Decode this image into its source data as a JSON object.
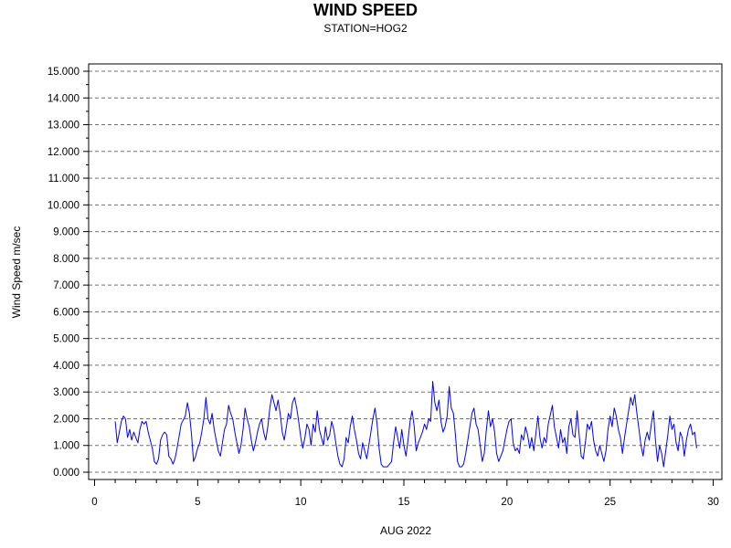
{
  "chart_data": {
    "type": "line",
    "title": "WIND SPEED",
    "subtitle": "STATION=HOG2",
    "xlabel": "AUG 2022",
    "ylabel": "Wind Speed m/sec",
    "xlim": [
      0,
      30
    ],
    "ylim": [
      0,
      15
    ],
    "x_ticks": [
      0,
      5,
      10,
      15,
      20,
      25,
      30
    ],
    "x_tick_labels": [
      "0",
      "5",
      "10",
      "15",
      "20",
      "25",
      "30"
    ],
    "y_ticks": [
      0,
      1,
      2,
      3,
      4,
      5,
      6,
      7,
      8,
      9,
      10,
      11,
      12,
      13,
      14,
      15
    ],
    "y_tick_labels": [
      "0.000",
      "1.000",
      "2.000",
      "3.000",
      "4.000",
      "5.000",
      "6.000",
      "7.000",
      "8.000",
      "9.000",
      "10.000",
      "11.000",
      "12.000",
      "13.000",
      "14.000",
      "15.000"
    ],
    "grid": "horizontal dashed at major y ticks",
    "line_color": "#0000ff",
    "series": [
      {
        "values": [
          [
            1.0,
            1.9
          ],
          [
            1.1,
            1.1
          ],
          [
            1.2,
            1.5
          ],
          [
            1.3,
            1.9
          ],
          [
            1.4,
            2.1
          ],
          [
            1.5,
            2.0
          ],
          [
            1.6,
            1.3
          ],
          [
            1.7,
            1.6
          ],
          [
            1.8,
            1.2
          ],
          [
            1.9,
            1.5
          ],
          [
            2.0,
            1.3
          ],
          [
            2.1,
            1.1
          ],
          [
            2.2,
            1.6
          ],
          [
            2.3,
            1.9
          ],
          [
            2.4,
            1.8
          ],
          [
            2.5,
            1.9
          ],
          [
            2.6,
            1.5
          ],
          [
            2.7,
            1.2
          ],
          [
            2.8,
            0.9
          ],
          [
            2.9,
            0.4
          ],
          [
            3.0,
            0.3
          ],
          [
            3.1,
            0.5
          ],
          [
            3.2,
            1.2
          ],
          [
            3.3,
            1.4
          ],
          [
            3.4,
            1.5
          ],
          [
            3.5,
            1.4
          ],
          [
            3.6,
            0.6
          ],
          [
            3.7,
            0.5
          ],
          [
            3.8,
            0.3
          ],
          [
            3.9,
            0.5
          ],
          [
            4.0,
            0.9
          ],
          [
            4.2,
            1.8
          ],
          [
            4.4,
            2.1
          ],
          [
            4.5,
            2.6
          ],
          [
            4.6,
            2.2
          ],
          [
            4.7,
            1.4
          ],
          [
            4.8,
            0.4
          ],
          [
            4.9,
            0.6
          ],
          [
            5.0,
            0.9
          ],
          [
            5.1,
            1.1
          ],
          [
            5.2,
            1.5
          ],
          [
            5.3,
            2.0
          ],
          [
            5.4,
            2.8
          ],
          [
            5.5,
            2.0
          ],
          [
            5.6,
            1.8
          ],
          [
            5.7,
            2.2
          ],
          [
            5.8,
            1.6
          ],
          [
            5.9,
            1.2
          ],
          [
            6.0,
            0.8
          ],
          [
            6.1,
            0.6
          ],
          [
            6.2,
            1.1
          ],
          [
            6.3,
            1.6
          ],
          [
            6.4,
            1.8
          ],
          [
            6.5,
            2.5
          ],
          [
            6.6,
            2.2
          ],
          [
            6.7,
            2.0
          ],
          [
            6.8,
            1.5
          ],
          [
            6.9,
            1.1
          ],
          [
            7.0,
            0.7
          ],
          [
            7.1,
            1.0
          ],
          [
            7.2,
            1.6
          ],
          [
            7.3,
            2.4
          ],
          [
            7.4,
            2.0
          ],
          [
            7.5,
            1.7
          ],
          [
            7.6,
            1.2
          ],
          [
            7.7,
            0.8
          ],
          [
            7.8,
            1.1
          ],
          [
            7.9,
            1.5
          ],
          [
            8.0,
            1.8
          ],
          [
            8.1,
            2.0
          ],
          [
            8.2,
            1.5
          ],
          [
            8.3,
            1.2
          ],
          [
            8.4,
            1.7
          ],
          [
            8.5,
            2.4
          ],
          [
            8.6,
            2.9
          ],
          [
            8.7,
            2.6
          ],
          [
            8.8,
            2.3
          ],
          [
            8.9,
            2.7
          ],
          [
            9.0,
            2.2
          ],
          [
            9.1,
            1.5
          ],
          [
            9.2,
            1.2
          ],
          [
            9.3,
            1.7
          ],
          [
            9.4,
            2.2
          ],
          [
            9.5,
            2.0
          ],
          [
            9.6,
            2.6
          ],
          [
            9.7,
            2.8
          ],
          [
            9.8,
            2.4
          ],
          [
            9.9,
            1.9
          ],
          [
            10.0,
            1.3
          ],
          [
            10.1,
            0.9
          ],
          [
            10.2,
            1.3
          ],
          [
            10.3,
            1.8
          ],
          [
            10.4,
            1.6
          ],
          [
            10.5,
            1.0
          ],
          [
            10.6,
            1.8
          ],
          [
            10.7,
            1.5
          ],
          [
            10.8,
            2.3
          ],
          [
            10.9,
            1.6
          ],
          [
            11.0,
            1.3
          ],
          [
            11.1,
            1.0
          ],
          [
            11.2,
            1.7
          ],
          [
            11.3,
            1.2
          ],
          [
            11.4,
            1.4
          ],
          [
            11.5,
            1.9
          ],
          [
            11.6,
            1.6
          ],
          [
            11.7,
            1.1
          ],
          [
            11.8,
            0.6
          ],
          [
            11.9,
            0.3
          ],
          [
            12.0,
            0.2
          ],
          [
            12.1,
            0.5
          ],
          [
            12.2,
            1.3
          ],
          [
            12.3,
            1.1
          ],
          [
            12.4,
            1.7
          ],
          [
            12.5,
            2.1
          ],
          [
            12.6,
            1.6
          ],
          [
            12.7,
            1.2
          ],
          [
            12.8,
            0.7
          ],
          [
            12.9,
            0.5
          ],
          [
            13.0,
            1.1
          ],
          [
            13.1,
            0.8
          ],
          [
            13.2,
            0.5
          ],
          [
            13.3,
            1.0
          ],
          [
            13.4,
            1.5
          ],
          [
            13.5,
            2.0
          ],
          [
            13.6,
            2.4
          ],
          [
            13.7,
            1.8
          ],
          [
            13.8,
            0.9
          ],
          [
            13.9,
            0.3
          ],
          [
            14.0,
            0.2
          ],
          [
            14.2,
            0.2
          ],
          [
            14.4,
            0.4
          ],
          [
            14.5,
            1.1
          ],
          [
            14.6,
            1.7
          ],
          [
            14.7,
            1.3
          ],
          [
            14.8,
            0.9
          ],
          [
            14.9,
            1.6
          ],
          [
            15.0,
            1.0
          ],
          [
            15.1,
            0.6
          ],
          [
            15.2,
            1.2
          ],
          [
            15.3,
            1.9
          ],
          [
            15.4,
            2.3
          ],
          [
            15.5,
            1.7
          ],
          [
            15.6,
            0.8
          ],
          [
            15.7,
            1.1
          ],
          [
            15.8,
            1.3
          ],
          [
            15.9,
            1.5
          ],
          [
            16.0,
            1.8
          ],
          [
            16.1,
            1.6
          ],
          [
            16.2,
            2.0
          ],
          [
            16.3,
            1.9
          ],
          [
            16.4,
            3.4
          ],
          [
            16.5,
            2.6
          ],
          [
            16.6,
            2.3
          ],
          [
            16.7,
            2.7
          ],
          [
            16.8,
            1.9
          ],
          [
            16.9,
            1.5
          ],
          [
            17.0,
            1.7
          ],
          [
            17.1,
            2.1
          ],
          [
            17.2,
            3.2
          ],
          [
            17.3,
            2.4
          ],
          [
            17.4,
            2.2
          ],
          [
            17.5,
            1.4
          ],
          [
            17.6,
            0.4
          ],
          [
            17.7,
            0.2
          ],
          [
            17.8,
            0.2
          ],
          [
            17.9,
            0.3
          ],
          [
            18.0,
            0.7
          ],
          [
            18.1,
            1.2
          ],
          [
            18.2,
            1.7
          ],
          [
            18.3,
            2.2
          ],
          [
            18.4,
            2.4
          ],
          [
            18.5,
            1.8
          ],
          [
            18.6,
            1.6
          ],
          [
            18.7,
            1.0
          ],
          [
            18.8,
            0.4
          ],
          [
            18.9,
            0.7
          ],
          [
            19.0,
            1.6
          ],
          [
            19.1,
            2.3
          ],
          [
            19.2,
            1.7
          ],
          [
            19.3,
            2.0
          ],
          [
            19.4,
            1.5
          ],
          [
            19.5,
            0.7
          ],
          [
            19.6,
            0.4
          ],
          [
            19.7,
            0.6
          ],
          [
            19.8,
            0.8
          ],
          [
            19.9,
            1.2
          ],
          [
            20.0,
            1.6
          ],
          [
            20.1,
            1.9
          ],
          [
            20.2,
            2.0
          ],
          [
            20.3,
            1.1
          ],
          [
            20.4,
            0.8
          ],
          [
            20.5,
            0.9
          ],
          [
            20.6,
            0.7
          ],
          [
            20.7,
            1.4
          ],
          [
            20.8,
            1.2
          ],
          [
            20.9,
            1.7
          ],
          [
            21.0,
            1.4
          ],
          [
            21.1,
            0.9
          ],
          [
            21.2,
            1.3
          ],
          [
            21.3,
            0.8
          ],
          [
            21.5,
            2.1
          ],
          [
            21.6,
            1.3
          ],
          [
            21.7,
            0.9
          ],
          [
            21.8,
            1.3
          ],
          [
            21.9,
            1.1
          ],
          [
            22.0,
            1.8
          ],
          [
            22.2,
            2.5
          ],
          [
            22.3,
            1.7
          ],
          [
            22.4,
            1.3
          ],
          [
            22.5,
            0.9
          ],
          [
            22.6,
            1.6
          ],
          [
            22.7,
            1.1
          ],
          [
            22.8,
            1.3
          ],
          [
            22.9,
            0.7
          ],
          [
            23.0,
            1.7
          ],
          [
            23.1,
            2.0
          ],
          [
            23.2,
            1.4
          ],
          [
            23.3,
            1.3
          ],
          [
            23.4,
            2.3
          ],
          [
            23.5,
            1.4
          ],
          [
            23.6,
            0.6
          ],
          [
            23.7,
            0.5
          ],
          [
            23.8,
            1.1
          ],
          [
            23.9,
            1.8
          ],
          [
            24.0,
            1.6
          ],
          [
            24.1,
            1.9
          ],
          [
            24.2,
            1.2
          ],
          [
            24.3,
            0.8
          ],
          [
            24.4,
            0.6
          ],
          [
            24.5,
            1.0
          ],
          [
            24.6,
            0.7
          ],
          [
            24.7,
            0.4
          ],
          [
            24.8,
            0.8
          ],
          [
            24.9,
            1.6
          ],
          [
            25.0,
            2.1
          ],
          [
            25.1,
            1.7
          ],
          [
            25.2,
            2.4
          ],
          [
            25.3,
            2.1
          ],
          [
            25.4,
            1.6
          ],
          [
            25.5,
            1.3
          ],
          [
            25.6,
            0.7
          ],
          [
            25.7,
            1.3
          ],
          [
            25.8,
            1.8
          ],
          [
            25.9,
            2.3
          ],
          [
            26.0,
            2.8
          ],
          [
            26.1,
            2.5
          ],
          [
            26.2,
            2.9
          ],
          [
            26.3,
            2.2
          ],
          [
            26.4,
            1.6
          ],
          [
            26.5,
            1.0
          ],
          [
            26.6,
            0.6
          ],
          [
            26.7,
            1.2
          ],
          [
            26.8,
            1.5
          ],
          [
            26.9,
            1.2
          ],
          [
            27.0,
            1.8
          ],
          [
            27.1,
            2.3
          ],
          [
            27.2,
            1.2
          ],
          [
            27.3,
            0.4
          ],
          [
            27.4,
            1.0
          ],
          [
            27.5,
            0.7
          ],
          [
            27.6,
            0.2
          ],
          [
            27.7,
            0.8
          ],
          [
            27.8,
            1.4
          ],
          [
            27.9,
            2.1
          ],
          [
            28.0,
            1.6
          ],
          [
            28.1,
            1.8
          ],
          [
            28.2,
            1.1
          ],
          [
            28.3,
            0.8
          ],
          [
            28.4,
            1.5
          ],
          [
            28.5,
            1.3
          ],
          [
            28.6,
            0.6
          ],
          [
            28.7,
            1.2
          ],
          [
            28.8,
            1.6
          ],
          [
            28.9,
            1.8
          ],
          [
            29.0,
            1.4
          ],
          [
            29.1,
            1.5
          ],
          [
            29.2,
            0.9
          ]
        ]
      }
    ]
  }
}
